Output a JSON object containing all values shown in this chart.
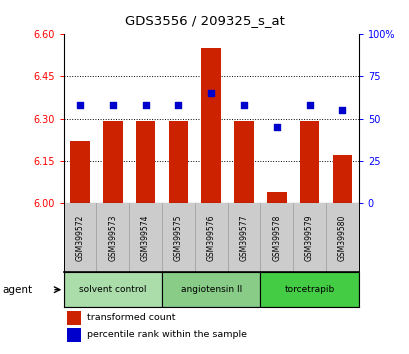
{
  "title": "GDS3556 / 209325_s_at",
  "samples": [
    "GSM399572",
    "GSM399573",
    "GSM399574",
    "GSM399575",
    "GSM399576",
    "GSM399577",
    "GSM399578",
    "GSM399579",
    "GSM399580"
  ],
  "bar_values": [
    6.22,
    6.29,
    6.29,
    6.29,
    6.55,
    6.29,
    6.04,
    6.29,
    6.17
  ],
  "dot_values": [
    58,
    58,
    58,
    58,
    65,
    58,
    45,
    58,
    55
  ],
  "bar_color": "#cc2200",
  "dot_color": "#0000cc",
  "ylim_left": [
    6.0,
    6.6
  ],
  "ylim_right": [
    0,
    100
  ],
  "yticks_left": [
    6.0,
    6.15,
    6.3,
    6.45,
    6.6
  ],
  "yticks_right": [
    0,
    25,
    50,
    75,
    100
  ],
  "ytick_labels_right": [
    "0",
    "25",
    "50",
    "75",
    "100%"
  ],
  "grid_values": [
    6.15,
    6.3,
    6.45
  ],
  "agent_groups": [
    {
      "label": "solvent control",
      "samples": [
        0,
        1,
        2
      ],
      "color": "#aaddaa"
    },
    {
      "label": "angiotensin II",
      "samples": [
        3,
        4,
        5
      ],
      "color": "#88cc88"
    },
    {
      "label": "torcetrapib",
      "samples": [
        6,
        7,
        8
      ],
      "color": "#44cc44"
    }
  ],
  "legend_bar_label": "transformed count",
  "legend_dot_label": "percentile rank within the sample",
  "agent_label": "agent",
  "background_color": "#ffffff",
  "bar_width": 0.6,
  "cell_color": "#cccccc"
}
